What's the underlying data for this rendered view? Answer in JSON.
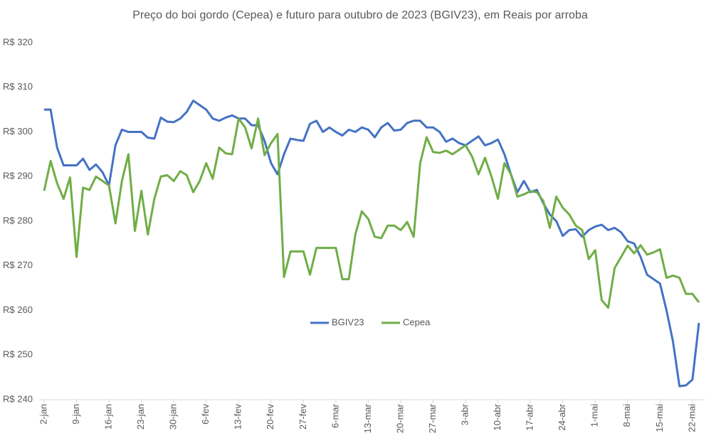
{
  "chart_data": {
    "type": "line",
    "title": "Preço do boi gordo (Cepea) e futuro para outubro de 2023 (BGIV23), em Reais por arroba",
    "categories": [
      "2-jan",
      null,
      null,
      null,
      null,
      "9-jan",
      null,
      null,
      null,
      null,
      "16-jan",
      null,
      null,
      null,
      null,
      "23-jan",
      null,
      null,
      null,
      null,
      "30-jan",
      null,
      null,
      null,
      null,
      "6-fev",
      null,
      null,
      null,
      null,
      "13-fev",
      null,
      null,
      null,
      null,
      "20-fev",
      null,
      null,
      null,
      null,
      "27-fev",
      null,
      null,
      null,
      null,
      "6-mar",
      null,
      null,
      null,
      null,
      "13-mar",
      null,
      null,
      null,
      null,
      "20-mar",
      null,
      null,
      null,
      null,
      "27-mar",
      null,
      null,
      null,
      null,
      "3-abr",
      null,
      null,
      null,
      null,
      "10-abr",
      null,
      null,
      null,
      null,
      "17-abr",
      null,
      null,
      null,
      null,
      "24-abr",
      null,
      null,
      null,
      null,
      "1-mai",
      null,
      null,
      null,
      null,
      "8-mai",
      null,
      null,
      null,
      null,
      "15-mai",
      null,
      null,
      null,
      null,
      "22-mai",
      null
    ],
    "series": [
      {
        "name": "BGIV23",
        "color": "#4472c4",
        "values": [
          305,
          305,
          296.5,
          292.5,
          292.5,
          292.5,
          294,
          291.5,
          292.7,
          291,
          288,
          297,
          300.5,
          300,
          300,
          300,
          298.7,
          298.5,
          303.2,
          302.3,
          302.2,
          303,
          304.5,
          307,
          306,
          305,
          303,
          302.5,
          303.2,
          303.7,
          303,
          303,
          301.5,
          301.5,
          298,
          293,
          290.5,
          295,
          298.5,
          298.2,
          298,
          301.8,
          302.5,
          300,
          301,
          300,
          299.2,
          300.5,
          300,
          301,
          300.5,
          298.8,
          301,
          302,
          300.3,
          300.5,
          302,
          302.5,
          302.5,
          301,
          301,
          300,
          297.8,
          298.5,
          297.5,
          297,
          298,
          299,
          297,
          297.5,
          298.3,
          295,
          290.5,
          286.5,
          289,
          286.5,
          287,
          284,
          281.5,
          280,
          276.7,
          278,
          278.2,
          276.5,
          278,
          278.8,
          279.2,
          278,
          278.5,
          277.5,
          275.5,
          275,
          272,
          268,
          267,
          266,
          260,
          253,
          243,
          243.2,
          244.5,
          257.2
        ]
      },
      {
        "name": "Cepea",
        "color": "#70ad47",
        "values": [
          286.8,
          293.5,
          288.5,
          285,
          289.8,
          272,
          287.5,
          287,
          290,
          289,
          288,
          279.5,
          289,
          295,
          277.8,
          286.8,
          277,
          285,
          290,
          290.3,
          289,
          291.2,
          290.3,
          286.5,
          289,
          293,
          289.5,
          296.5,
          295.2,
          295,
          303,
          301,
          296.3,
          303,
          294.8,
          297.5,
          299.5,
          267.5,
          273.2,
          273.2,
          273.2,
          268,
          274,
          274,
          274,
          274,
          267,
          267,
          277,
          282.2,
          280.5,
          276.5,
          276.2,
          279,
          279,
          278,
          279.8,
          276.5,
          293,
          298.8,
          295.5,
          295.3,
          295.8,
          295,
          296,
          297,
          294.5,
          290.5,
          294.2,
          290,
          285,
          293,
          290.5,
          285.5,
          286,
          286.7,
          286.5,
          284.5,
          278.5,
          285.5,
          283,
          281.5,
          279,
          278,
          271.5,
          273.5,
          262.3,
          260.6,
          269.5,
          272,
          274.5,
          272.8,
          274.6,
          272.5,
          273,
          273.7,
          267.3,
          267.8,
          267.3,
          263.7,
          263.7,
          261.8
        ]
      }
    ],
    "ylim": [
      240,
      320
    ],
    "yticks": [
      {
        "value": 240,
        "label": "R$ 240"
      },
      {
        "value": 250,
        "label": "R$ 250"
      },
      {
        "value": 260,
        "label": "R$ 260"
      },
      {
        "value": 270,
        "label": "R$ 270"
      },
      {
        "value": 280,
        "label": "R$ 280"
      },
      {
        "value": 290,
        "label": "R$ 290"
      },
      {
        "value": 300,
        "label": "R$ 300"
      },
      {
        "value": 310,
        "label": "R$ 310"
      },
      {
        "value": 320,
        "label": "R$ 320"
      }
    ],
    "grid": false,
    "legend": "center"
  }
}
